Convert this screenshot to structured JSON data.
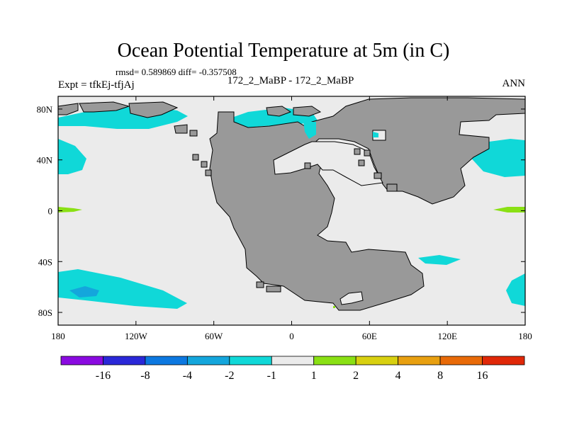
{
  "chart_data": {
    "type": "heatmap",
    "title": "Ocean Potential Temperature at 5m (in C)",
    "stats_text": "rmsd= 0.589869 diff= -0.357508",
    "left_label": "Expt = tfkEj-tfjAj",
    "center_label": "172_2_MaBP - 172_2_MaBP",
    "right_label": "ANN",
    "x_ticks": [
      "180",
      "120W",
      "60W",
      "0",
      "60E",
      "120E",
      "180"
    ],
    "y_ticks": [
      "80N",
      "40N",
      "0",
      "40S",
      "80S"
    ],
    "xlim": [
      -180,
      180
    ],
    "ylim": [
      -90,
      90
    ],
    "colorbar": {
      "colors": [
        "#8a0ae0",
        "#2a28d8",
        "#0c78e0",
        "#14a6dc",
        "#10d8d8",
        "#ebebeb",
        "#8ae014",
        "#d8d010",
        "#e8a010",
        "#e86a08",
        "#e02808"
      ],
      "labels": [
        "-16",
        "-8",
        "-4",
        "-2",
        "-1",
        "1",
        "2",
        "4",
        "8",
        "16"
      ]
    },
    "colors": {
      "land": "#999999",
      "ocean_zero": "#ebebeb",
      "cyan": "#10d8d8",
      "blue": "#14a6dc",
      "green": "#8ae014"
    }
  }
}
